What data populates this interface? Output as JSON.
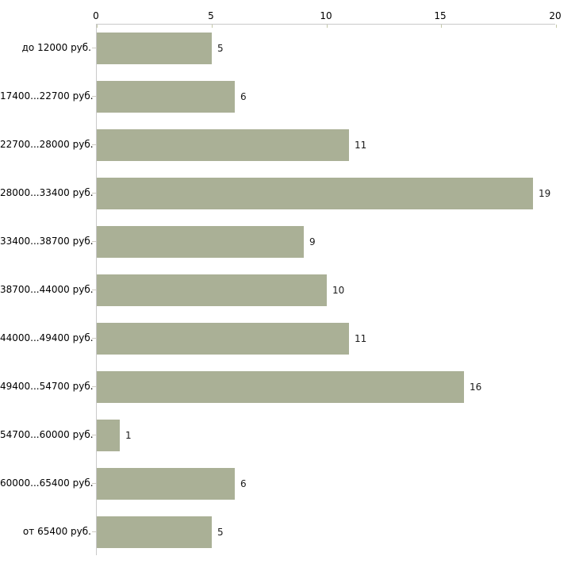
{
  "chart_data": {
    "type": "bar",
    "orientation": "horizontal",
    "title": "",
    "categories": [
      "до 12000 руб.",
      "17400...22700 руб.",
      "22700...28000 руб.",
      "28000...33400 руб.",
      "33400...38700 руб.",
      "38700...44000 руб.",
      "44000...49400 руб.",
      "49400...54700 руб.",
      "54700...60000 руб.",
      "60000...65400 руб.",
      "от 65400 руб."
    ],
    "values": [
      5,
      6,
      11,
      19,
      9,
      10,
      11,
      16,
      1,
      6,
      5
    ],
    "x_ticks": [
      0,
      5,
      10,
      15,
      20
    ],
    "xlim": [
      0,
      20
    ],
    "value_labels_shown": true,
    "grid": false,
    "legend": "none",
    "colors": {
      "bar": "#aab096",
      "axis_line": "#c9c9c9",
      "axis_tick": "#c5c9a9",
      "category_tick": "#cfccc4",
      "text": "#000000",
      "background": "#ffffff"
    }
  }
}
